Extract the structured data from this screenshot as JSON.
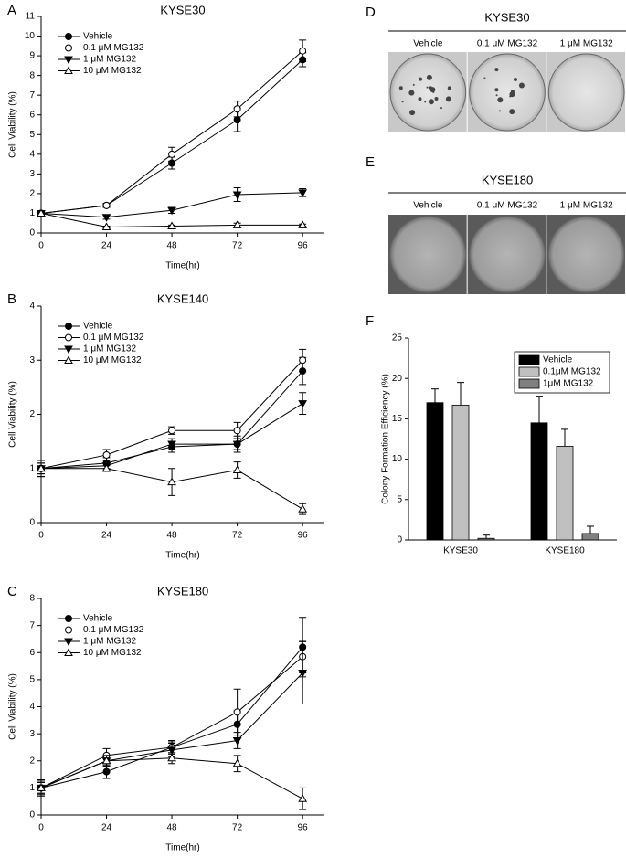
{
  "chart_data": [
    {
      "type": "line",
      "panel_label": "A",
      "title": "KYSE30",
      "xlabel": "Time(hr)",
      "ylabel": "Cell Viability (%)",
      "x": [
        0,
        24,
        48,
        72,
        96
      ],
      "xlim": [
        0,
        104
      ],
      "xticks": [
        0,
        24,
        48,
        72,
        96
      ],
      "ylim": [
        0,
        11
      ],
      "yticks": [
        0,
        1,
        2,
        3,
        4,
        5,
        6,
        7,
        8,
        9,
        10,
        11
      ],
      "series": [
        {
          "name": "Vehicle",
          "marker": "circle-filled",
          "values": [
            1,
            1.4,
            3.55,
            5.75,
            8.8
          ],
          "errors": [
            0.05,
            0.1,
            0.3,
            0.6,
            0.35
          ]
        },
        {
          "name": "0.1 μM MG132",
          "marker": "circle-open",
          "values": [
            1,
            1.4,
            4.0,
            6.3,
            9.25
          ],
          "errors": [
            0.05,
            0.1,
            0.35,
            0.4,
            0.55
          ]
        },
        {
          "name": "1 μM MG132",
          "marker": "triangle-down-filled",
          "values": [
            1,
            0.8,
            1.15,
            1.95,
            2.05
          ],
          "errors": [
            0.05,
            0.1,
            0.15,
            0.35,
            0.2
          ]
        },
        {
          "name": "10 μM MG132",
          "marker": "triangle-up-open",
          "values": [
            1,
            0.3,
            0.35,
            0.4,
            0.4
          ],
          "errors": [
            0.05,
            0.05,
            0.05,
            0.1,
            0.05
          ]
        }
      ]
    },
    {
      "type": "line",
      "panel_label": "B",
      "title": "KYSE140",
      "xlabel": "Time(hr)",
      "ylabel": "Cell Viability (%)",
      "x": [
        0,
        24,
        48,
        72,
        96
      ],
      "xlim": [
        0,
        104
      ],
      "xticks": [
        0,
        24,
        48,
        72,
        96
      ],
      "ylim": [
        0,
        4
      ],
      "yticks": [
        0,
        1,
        2,
        3,
        4
      ],
      "series": [
        {
          "name": "Vehicle",
          "marker": "circle-filled",
          "values": [
            1,
            1.1,
            1.4,
            1.45,
            2.8
          ],
          "errors": [
            0.1,
            0.1,
            0.1,
            0.1,
            0.25
          ]
        },
        {
          "name": "0.1 μM MG132",
          "marker": "circle-open",
          "values": [
            1,
            1.25,
            1.7,
            1.7,
            3.0
          ],
          "errors": [
            0.15,
            0.1,
            0.07,
            0.15,
            0.2
          ]
        },
        {
          "name": "1 μM MG132",
          "marker": "triangle-down-filled",
          "values": [
            1,
            1.05,
            1.45,
            1.45,
            2.2
          ],
          "errors": [
            0.1,
            0.1,
            0.1,
            0.15,
            0.2
          ]
        },
        {
          "name": "10 μM MG132",
          "marker": "triangle-up-open",
          "values": [
            1,
            1.0,
            0.75,
            0.97,
            0.25
          ],
          "errors": [
            0.15,
            0.05,
            0.25,
            0.15,
            0.1
          ]
        }
      ]
    },
    {
      "type": "line",
      "panel_label": "C",
      "title": "KYSE180",
      "xlabel": "Time(hr)",
      "ylabel": "Cell Viability (%)",
      "x": [
        0,
        24,
        48,
        72,
        96
      ],
      "xlim": [
        0,
        104
      ],
      "xticks": [
        0,
        24,
        48,
        72,
        96
      ],
      "ylim": [
        0,
        8
      ],
      "yticks": [
        0,
        1,
        2,
        3,
        4,
        5,
        6,
        7,
        8
      ],
      "series": [
        {
          "name": "Vehicle",
          "marker": "circle-filled",
          "values": [
            1,
            1.6,
            2.5,
            3.35,
            6.2
          ],
          "errors": [
            0.25,
            0.25,
            0.25,
            0.5,
            1.1
          ]
        },
        {
          "name": "0.1 μM MG132",
          "marker": "circle-open",
          "values": [
            1,
            2.2,
            2.5,
            3.8,
            5.85
          ],
          "errors": [
            0.3,
            0.25,
            0.2,
            0.85,
            0.6
          ]
        },
        {
          "name": "1 μM MG132",
          "marker": "triangle-down-filled",
          "values": [
            1,
            2.0,
            2.4,
            2.75,
            5.25
          ],
          "errors": [
            0.2,
            0.2,
            0.25,
            0.3,
            1.15
          ]
        },
        {
          "name": "10 μM MG132",
          "marker": "triangle-up-open",
          "values": [
            1,
            2.0,
            2.1,
            1.9,
            0.6
          ],
          "errors": [
            0.2,
            0.2,
            0.2,
            0.3,
            0.4
          ]
        }
      ]
    },
    {
      "type": "bar",
      "panel_label": "F",
      "ylabel": "Colony Formation Efficiency (%)",
      "categories": [
        "KYSE30",
        "KYSE180"
      ],
      "ylim": [
        0,
        25
      ],
      "yticks": [
        0,
        5,
        10,
        15,
        20,
        25
      ],
      "series": [
        {
          "name": "Vehicle",
          "color": "#000000",
          "values": [
            17,
            14.5
          ],
          "errors": [
            1.7,
            3.3
          ]
        },
        {
          "name": "0.1μM MG132",
          "color": "#c0c0c0",
          "values": [
            16.7,
            11.6
          ],
          "errors": [
            2.8,
            2.1
          ]
        },
        {
          "name": "1μM MG132",
          "color": "#808080",
          "values": [
            0.2,
            0.8
          ],
          "errors": [
            0.4,
            0.9
          ]
        }
      ]
    }
  ],
  "photos": [
    {
      "panel_label": "D",
      "title": "KYSE30",
      "labels": [
        "Vehicle",
        "0.1 μM MG132",
        "1 μM MG132"
      ]
    },
    {
      "panel_label": "E",
      "title": "KYSE180",
      "labels": [
        "Vehicle",
        "0.1 μM MG132",
        "1 μM MG132"
      ]
    }
  ]
}
